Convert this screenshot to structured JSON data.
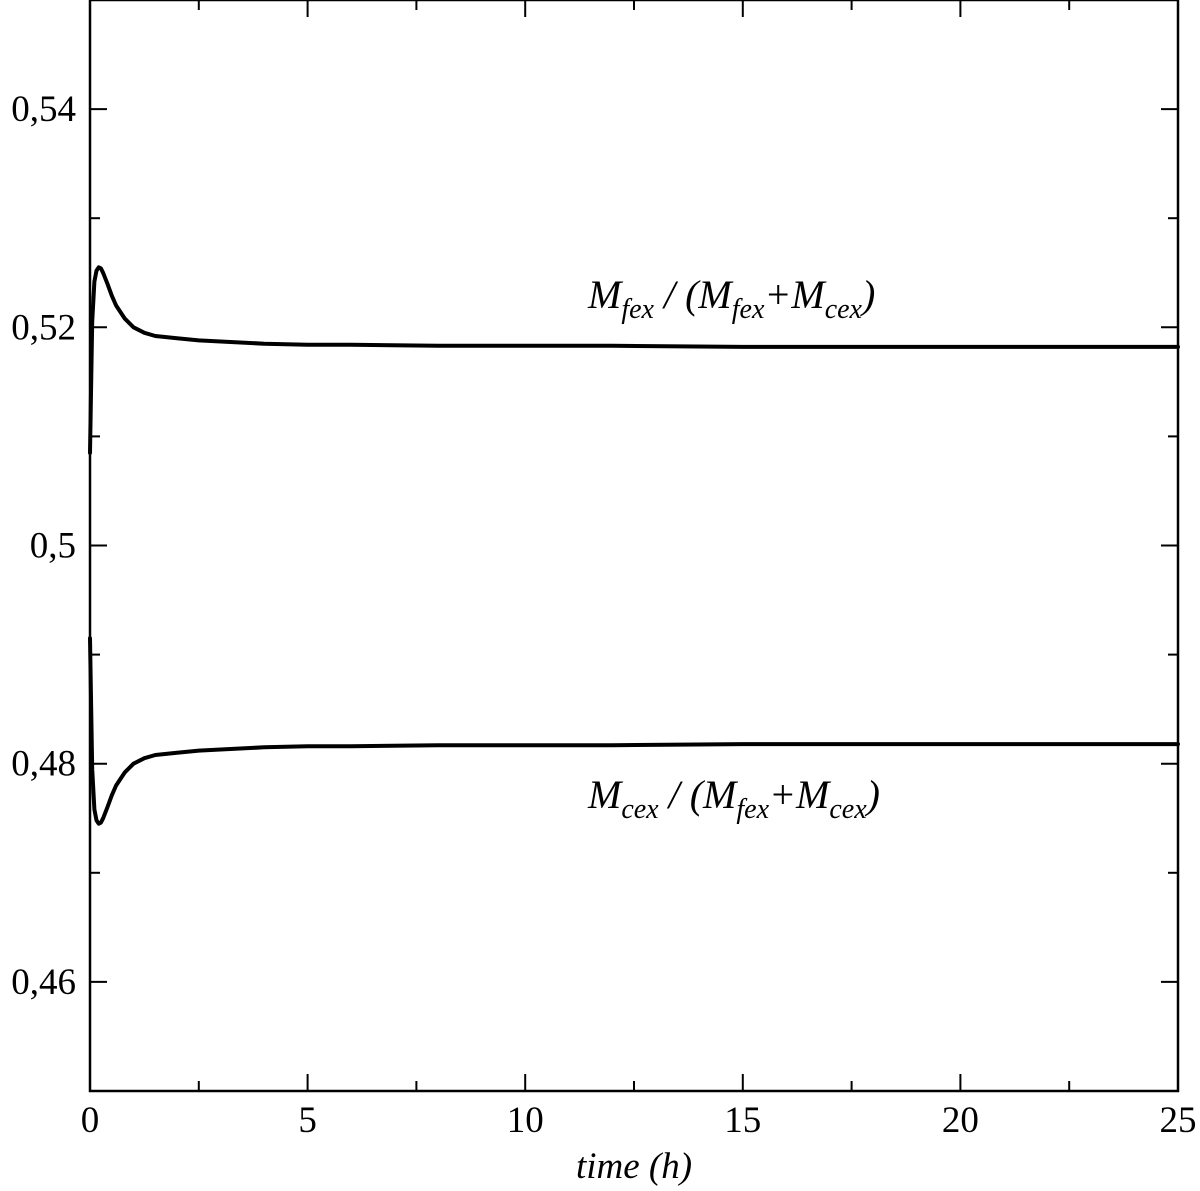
{
  "chart_data": {
    "type": "line",
    "title": "",
    "xlabel": "time (h)",
    "ylabel": "",
    "xlim": [
      0,
      25
    ],
    "ylim": [
      0.45,
      0.55
    ],
    "x_ticks": [
      0,
      5,
      10,
      15,
      20,
      25
    ],
    "x_tick_labels": [
      "0",
      "5",
      "10",
      "15",
      "20",
      "25"
    ],
    "x_minor_step": 2.5,
    "y_ticks": [
      0.46,
      0.48,
      0.5,
      0.52,
      0.54
    ],
    "y_tick_labels": [
      "0,46",
      "0,48",
      "0,5",
      "0,52",
      "0,54"
    ],
    "y_minor_step": 0.01,
    "grid": false,
    "legend": "none",
    "line_color": "#000000",
    "series": [
      {
        "x": [
          0,
          0.05,
          0.1,
          0.15,
          0.2,
          0.25,
          0.3,
          0.4,
          0.5,
          0.6,
          0.8,
          1.0,
          1.25,
          1.5,
          2,
          2.5,
          3,
          4,
          5,
          6,
          8,
          10,
          12,
          15,
          20,
          25
        ],
        "values": [
          0.5085,
          0.5205,
          0.5242,
          0.5252,
          0.5255,
          0.5254,
          0.525,
          0.524,
          0.5229,
          0.522,
          0.5208,
          0.52,
          0.5195,
          0.5192,
          0.519,
          0.5188,
          0.5187,
          0.5185,
          0.5184,
          0.5184,
          0.5183,
          0.5183,
          0.5183,
          0.5182,
          0.5182,
          0.5182
        ],
        "annotation": {
          "main1": "M",
          "sub1": "fex",
          "text2": " / (M",
          "sub2": "fex",
          "text3": "+M",
          "sub3": "cex",
          "text4": ")"
        }
      },
      {
        "x": [
          0,
          0.05,
          0.1,
          0.15,
          0.2,
          0.25,
          0.3,
          0.4,
          0.5,
          0.6,
          0.8,
          1.0,
          1.25,
          1.5,
          2,
          2.5,
          3,
          4,
          5,
          6,
          8,
          10,
          12,
          15,
          20,
          25
        ],
        "values": [
          0.4915,
          0.4795,
          0.4758,
          0.4748,
          0.4745,
          0.4746,
          0.475,
          0.476,
          0.4771,
          0.478,
          0.4792,
          0.48,
          0.4805,
          0.4808,
          0.481,
          0.4812,
          0.4813,
          0.4815,
          0.4816,
          0.4816,
          0.4817,
          0.4817,
          0.4817,
          0.4818,
          0.4818,
          0.4818
        ],
        "annotation": {
          "main1": "M",
          "sub1": "cex",
          "text2": " / (M",
          "sub2": "fex",
          "text3": "+M",
          "sub3": "cex",
          "text4": ")"
        }
      }
    ]
  }
}
